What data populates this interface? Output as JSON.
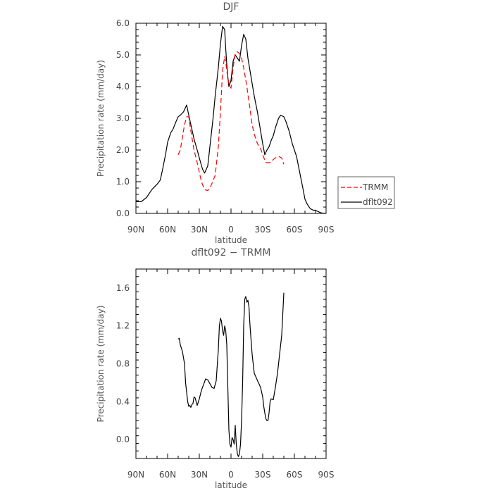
{
  "chart_data": [
    {
      "type": "line",
      "title": "DJF",
      "xlabel": "latitude",
      "ylabel": "Precipitation rate  (mm/day)",
      "xlim": [
        90,
        -90
      ],
      "ylim": [
        0,
        6
      ],
      "xticks": [
        90,
        60,
        30,
        0,
        -30,
        -60,
        -90
      ],
      "xtick_labels": [
        "90N",
        "60N",
        "30N",
        "0",
        "30S",
        "60S",
        "90S"
      ],
      "yticks": [
        0,
        1,
        2,
        3,
        4,
        5,
        6
      ],
      "ytick_labels": [
        "0.0",
        "1.0",
        "2.0",
        "3.0",
        "4.0",
        "5.0",
        "6.0"
      ],
      "legend": {
        "placement": "right",
        "entries": [
          "TRMM",
          "dflt092"
        ]
      },
      "series": [
        {
          "name": "dflt092",
          "color": "#000000",
          "dash": "solid",
          "x": [
            90,
            85,
            80,
            75,
            70,
            67,
            65,
            62,
            60,
            57,
            55,
            52,
            50,
            48,
            45,
            42,
            40,
            38,
            35,
            32,
            30,
            27,
            25,
            22,
            20,
            17,
            15,
            12,
            10,
            8,
            6,
            5,
            4,
            3,
            2,
            0,
            -2,
            -4,
            -6,
            -8,
            -10,
            -12,
            -14,
            -16,
            -18,
            -20,
            -22,
            -25,
            -28,
            -30,
            -32,
            -34,
            -36,
            -38,
            -40,
            -42,
            -45,
            -47,
            -50,
            -52,
            -55,
            -58,
            -60,
            -62,
            -65,
            -68,
            -70,
            -72,
            -75,
            -78,
            -80,
            -83,
            -85,
            -88,
            -90
          ],
          "y": [
            0.37,
            0.37,
            0.5,
            0.75,
            0.92,
            1.05,
            1.35,
            1.85,
            2.25,
            2.55,
            2.65,
            2.9,
            3.05,
            3.1,
            3.2,
            3.42,
            3.1,
            2.8,
            2.35,
            2.0,
            1.75,
            1.4,
            1.27,
            1.5,
            2.1,
            3.0,
            3.7,
            4.6,
            5.35,
            5.9,
            5.8,
            5.2,
            4.7,
            4.3,
            4.0,
            4.2,
            4.8,
            5.0,
            4.9,
            4.8,
            5.3,
            5.65,
            5.5,
            4.9,
            4.5,
            4.1,
            3.7,
            3.2,
            2.6,
            2.2,
            1.85,
            2.0,
            2.1,
            2.3,
            2.45,
            2.7,
            3.0,
            3.1,
            3.05,
            2.9,
            2.6,
            2.2,
            2.0,
            1.8,
            1.3,
            0.8,
            0.45,
            0.3,
            0.15,
            0.1,
            0.1,
            0.05,
            0.02,
            0.0,
            0.0
          ]
        },
        {
          "name": "TRMM",
          "color": "#ff0000",
          "dash": "dashed",
          "x": [
            50,
            48,
            46,
            44,
            42,
            40,
            38,
            35,
            32,
            30,
            28,
            25,
            22,
            20,
            18,
            15,
            12,
            10,
            8,
            6,
            5,
            4,
            3,
            2,
            0,
            -2,
            -4,
            -6,
            -8,
            -10,
            -12,
            -15,
            -18,
            -20,
            -22,
            -25,
            -28,
            -30,
            -33,
            -36,
            -38,
            -40,
            -42,
            -45,
            -48,
            -50
          ],
          "y": [
            1.85,
            2.0,
            2.4,
            2.8,
            3.05,
            3.05,
            2.6,
            2.0,
            1.6,
            1.3,
            1.0,
            0.75,
            0.72,
            0.8,
            0.95,
            1.2,
            2.1,
            3.2,
            4.5,
            4.95,
            4.8,
            4.5,
            4.3,
            4.1,
            3.95,
            4.6,
            5.05,
            5.1,
            5.05,
            4.9,
            4.6,
            4.0,
            3.3,
            2.8,
            2.5,
            2.2,
            2.05,
            1.85,
            1.6,
            1.6,
            1.62,
            1.7,
            1.75,
            1.8,
            1.75,
            1.55
          ]
        }
      ]
    },
    {
      "type": "line",
      "title": "dflt092 − TRMM",
      "xlabel": "latitude",
      "ylabel": "Precipitation rate  (mm/day)",
      "xlim": [
        90,
        -90
      ],
      "ylim": [
        -0.2,
        1.8
      ],
      "xticks": [
        90,
        60,
        30,
        0,
        -30,
        -60,
        -90
      ],
      "xtick_labels": [
        "90N",
        "60N",
        "30N",
        "0",
        "30S",
        "60S",
        "90S"
      ],
      "yticks": [
        0,
        0.4,
        0.8,
        1.2,
        1.6
      ],
      "ytick_labels": [
        "0.0",
        "0.4",
        "0.8",
        "1.2",
        "1.6"
      ],
      "series": [
        {
          "color": "#000000",
          "dash": "solid",
          "x": [
            50,
            49,
            48,
            46,
            44,
            43,
            42,
            41,
            40,
            39,
            38,
            37,
            36,
            35,
            34,
            32,
            30,
            28,
            26,
            24,
            22,
            20,
            18,
            16,
            14,
            12,
            11,
            10,
            9,
            8,
            7,
            6,
            5,
            4,
            3,
            2,
            1,
            0,
            -1,
            -2,
            -3,
            -4,
            -5,
            -6,
            -7,
            -8,
            -9,
            -10,
            -11,
            -12,
            -13,
            -14,
            -15,
            -16,
            -17,
            -18,
            -20,
            -22,
            -24,
            -26,
            -28,
            -30,
            -31,
            -32,
            -33,
            -34,
            -35,
            -36,
            -37,
            -38,
            -40,
            -42,
            -44,
            -46,
            -48,
            -50
          ],
          "y": [
            1.06,
            1.07,
            1.0,
            0.93,
            0.8,
            0.6,
            0.5,
            0.4,
            0.35,
            0.36,
            0.34,
            0.37,
            0.38,
            0.45,
            0.44,
            0.36,
            0.43,
            0.52,
            0.58,
            0.64,
            0.63,
            0.59,
            0.55,
            0.54,
            0.62,
            0.95,
            1.2,
            1.28,
            1.25,
            1.15,
            1.1,
            1.2,
            1.15,
            1.0,
            0.55,
            0.1,
            -0.05,
            -0.08,
            0.02,
            0.0,
            -0.05,
            0.15,
            -0.05,
            -0.15,
            -0.18,
            -0.15,
            -0.05,
            0.2,
            0.6,
            1.2,
            1.48,
            1.51,
            1.45,
            1.47,
            1.4,
            1.2,
            0.9,
            0.7,
            0.65,
            0.6,
            0.55,
            0.45,
            0.35,
            0.28,
            0.22,
            0.2,
            0.2,
            0.28,
            0.4,
            0.43,
            0.42,
            0.55,
            0.7,
            0.9,
            1.1,
            1.55
          ]
        }
      ]
    }
  ]
}
